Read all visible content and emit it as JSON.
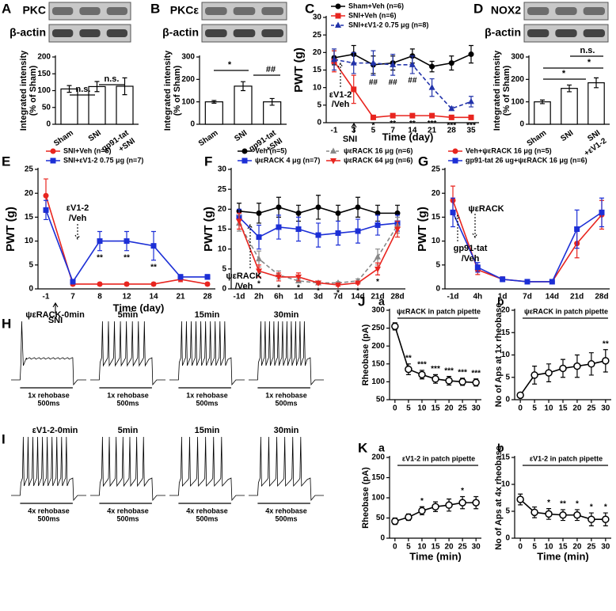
{
  "chart_data": [
    {
      "type": "bar",
      "panel": "A",
      "blot_labels": [
        "PKC",
        "β-actin"
      ],
      "ylabel": [
        "Integrated intensity",
        "(% of Sham)"
      ],
      "categories": [
        "Sham",
        "SNI",
        [
          "gp91-tat",
          "+SNI"
        ]
      ],
      "values": [
        105,
        112,
        113
      ],
      "errors": [
        10,
        15,
        25
      ],
      "color": "#ffffff",
      "ylim": [
        0,
        200
      ],
      "yticks": [
        0,
        50,
        100,
        150,
        200
      ],
      "annotations": [
        "n.s.",
        "n.s."
      ]
    },
    {
      "type": "bar",
      "panel": "B",
      "blot_labels": [
        "PKCε",
        "β-actin"
      ],
      "ylabel": [
        "Integrated intensity",
        "(% of Sham)"
      ],
      "categories": [
        "Sham",
        "SNI",
        [
          "gp91-tat",
          "+SNI"
        ]
      ],
      "values": [
        100,
        170,
        100
      ],
      "errors": [
        6,
        20,
        15
      ],
      "color": "#ffffff",
      "ylim": [
        0,
        300
      ],
      "yticks": [
        0,
        100,
        200,
        300
      ],
      "annotations": [
        "*",
        "##"
      ]
    },
    {
      "type": "line",
      "panel": "C",
      "ylabel": "PWT (g)",
      "xlabel": "Time (day)",
      "categories": [
        "-1",
        "3",
        "5",
        "7",
        "14",
        "21",
        "28",
        "35"
      ],
      "ylim": [
        0,
        30
      ],
      "yticks": [
        0,
        5,
        10,
        15,
        20,
        25,
        30
      ],
      "series": [
        {
          "name": "Sham+Veh (n=6)",
          "color": "#000000",
          "marker": "circle",
          "dash": false,
          "values": [
            18.5,
            19.5,
            16.5,
            17,
            19,
            16,
            17,
            19.5
          ],
          "errors": [
            2,
            2.5,
            2.5,
            2,
            2,
            1.5,
            2,
            2.5
          ]
        },
        {
          "name": "SNI+Veh (n=6)",
          "color": "#e8251f",
          "marker": "square",
          "dash": false,
          "values": [
            17.5,
            9.5,
            1.5,
            2,
            2,
            2,
            1.5,
            1.5
          ],
          "errors": [
            3,
            4,
            0.3,
            0.3,
            0.3,
            0.3,
            0.3,
            0.3
          ],
          "significance": [
            null,
            null,
            "*",
            "**",
            "**",
            "***",
            "***",
            "***"
          ]
        },
        {
          "name": "SNI+εV1-2 0.75 μg (n=8)",
          "color": "#2233aa",
          "marker": "triangle",
          "dash": true,
          "values": [
            18,
            17,
            17,
            16.5,
            16.5,
            10,
            4,
            6
          ],
          "errors": [
            3,
            3,
            3.5,
            3,
            2.5,
            2.5,
            0.5,
            1.5
          ],
          "significance": [
            null,
            null,
            "##",
            "##",
            "##",
            null,
            null,
            null
          ]
        }
      ],
      "annotations": [
        "εV1-2",
        "/Veh",
        "SNI"
      ]
    },
    {
      "type": "bar",
      "panel": "D",
      "blot_labels": [
        "NOX2",
        "β-actin"
      ],
      "ylabel": [
        "Integrated intensity",
        "(% of Sham)"
      ],
      "categories": [
        "Sham",
        "SNI",
        [
          "SNI",
          "+εV1-2"
        ]
      ],
      "values": [
        100,
        160,
        185
      ],
      "errors": [
        8,
        15,
        22
      ],
      "color": "#ffffff",
      "ylim": [
        0,
        300
      ],
      "yticks": [
        0,
        100,
        200,
        300
      ],
      "annotations": [
        "n.s.",
        "*",
        "*"
      ]
    },
    {
      "type": "line",
      "panel": "E",
      "ylabel": "PWT (g)",
      "xlabel": "Time (day)",
      "categories": [
        "-1",
        "7",
        "8",
        "12",
        "14",
        "21",
        "28"
      ],
      "ylim": [
        0,
        25
      ],
      "yticks": [
        0,
        5,
        10,
        15,
        20,
        25
      ],
      "series": [
        {
          "name": "SNI+Veh (n=5)",
          "color": "#e8251f",
          "marker": "circle",
          "dash": false,
          "values": [
            19.5,
            1,
            1,
            1,
            1,
            2,
            1
          ],
          "errors": [
            3.5,
            0.3,
            0.3,
            0.3,
            0.3,
            0.5,
            0.3
          ]
        },
        {
          "name": "SNI+εV1-2 0.75 μg (n=7)",
          "color": "#1c2fd6",
          "marker": "square",
          "dash": false,
          "values": [
            16.5,
            1.5,
            10,
            10,
            9,
            2.5,
            2.5
          ],
          "errors": [
            2,
            0.3,
            2,
            2,
            3,
            0.5,
            0.5
          ],
          "significance": [
            null,
            null,
            "**",
            "**",
            "**",
            null,
            null
          ]
        }
      ],
      "annotations": [
        "εV1-2",
        "/Veh",
        "SNI"
      ]
    },
    {
      "type": "line",
      "panel": "F",
      "ylabel": "PWT (g)",
      "categories": [
        "-1d",
        "2h",
        "6h",
        "1d",
        "3d",
        "7d",
        "14d",
        "21d",
        "28d"
      ],
      "ylim": [
        0,
        30
      ],
      "yticks": [
        0,
        5,
        10,
        15,
        20,
        25,
        30
      ],
      "series": [
        {
          "name": "Veh (n=5)",
          "color": "#000000",
          "marker": "circle",
          "dash": false,
          "values": [
            19.5,
            19,
            20.5,
            19,
            20.5,
            19,
            20.5,
            19,
            19
          ],
          "errors": [
            2,
            2.5,
            2.5,
            2,
            3,
            2,
            2.5,
            2,
            2
          ]
        },
        {
          "name": "ψεRACK 4 μg (n=7)",
          "color": "#1c2fd6",
          "marker": "square",
          "dash": false,
          "values": [
            18,
            13,
            15.5,
            15,
            13.5,
            14,
            14.5,
            16,
            16.5
          ],
          "errors": [
            2,
            3,
            3,
            3,
            3,
            3,
            3,
            2.5,
            2
          ]
        },
        {
          "name": "ψεRACK 16 μg (n=6)",
          "color": "#888888",
          "marker": "triangle",
          "dash": true,
          "values": [
            16.5,
            7.5,
            3.5,
            2,
            1.5,
            1.5,
            2,
            8,
            16
          ],
          "errors": [
            2,
            2,
            1,
            0.5,
            0.3,
            0.3,
            0.5,
            2,
            2
          ]
        },
        {
          "name": "ψεRACK 64 μg (n=6)",
          "color": "#e8251f",
          "marker": "triangle-down",
          "dash": false,
          "values": [
            17,
            4.5,
            3,
            3,
            1.5,
            1,
            1.5,
            5,
            15
          ],
          "errors": [
            2,
            1.5,
            1,
            1,
            0.3,
            0.3,
            0.3,
            1.5,
            2
          ],
          "significance": [
            null,
            "*",
            "*",
            "*",
            "*",
            "*",
            "*",
            "*",
            null
          ]
        }
      ],
      "annotations": [
        "ψεRACK",
        "/Veh"
      ]
    },
    {
      "type": "line",
      "panel": "G",
      "ylabel": "PWT (g)",
      "categories": [
        "-1d",
        "4h",
        "1d",
        "7d",
        "14d",
        "21d",
        "28d"
      ],
      "ylim": [
        0,
        25
      ],
      "yticks": [
        0,
        5,
        10,
        15,
        20,
        25
      ],
      "series": [
        {
          "name": "Veh+ψεRACK 16 μg (n=5)",
          "color": "#e8251f",
          "marker": "circle",
          "dash": false,
          "values": [
            18.5,
            4,
            2,
            1.5,
            1.5,
            9.5,
            15.5
          ],
          "errors": [
            3,
            1,
            0.5,
            0.3,
            0.3,
            3,
            3
          ]
        },
        {
          "name": "gp91-tat 26 ug+ψεRACK 16 μg (n=6)",
          "color": "#1c2fd6",
          "marker": "square",
          "dash": false,
          "values": [
            16,
            4.5,
            2,
            1.5,
            1.5,
            12.5,
            16
          ],
          "errors": [
            3,
            1,
            0.5,
            0.3,
            0.3,
            4,
            3
          ]
        }
      ],
      "annotations": [
        "ψεRACK",
        "gp91-tat",
        "/Veh"
      ]
    },
    {
      "type": "line",
      "panel": "J",
      "subpanel": "a",
      "title": "ψεRACK in patch pipette",
      "ylabel": "Rheobase (pA)",
      "x": [
        0,
        5,
        10,
        15,
        20,
        25,
        30
      ],
      "xlim": [
        -2,
        32
      ],
      "xticks": [
        0,
        5,
        10,
        15,
        20,
        25,
        30
      ],
      "ylim": [
        50,
        300
      ],
      "yticks": [
        50,
        100,
        150,
        200,
        250,
        300
      ],
      "series": [
        {
          "color": "#000000",
          "marker": "open-circle",
          "dash": false,
          "values": [
            255,
            135,
            120,
            108,
            103,
            100,
            98
          ],
          "errors": [
            10,
            15,
            12,
            12,
            12,
            10,
            10
          ],
          "significance": [
            null,
            "**",
            "***",
            "***",
            "***",
            "***",
            "***"
          ]
        }
      ]
    },
    {
      "type": "line",
      "subpanel": "b",
      "title": "ψεRACK in patch pipette",
      "ylabel": "No of Aps at 1x rheobase",
      "x": [
        0,
        5,
        10,
        15,
        20,
        25,
        30
      ],
      "xlim": [
        -2,
        32
      ],
      "xticks": [
        0,
        5,
        10,
        15,
        20,
        25,
        30
      ],
      "ylim": [
        0,
        20
      ],
      "yticks": [
        0,
        5,
        10,
        15,
        20
      ],
      "series": [
        {
          "color": "#000000",
          "marker": "open-circle",
          "dash": false,
          "values": [
            1,
            5.5,
            6,
            7,
            7.5,
            8,
            8.7
          ],
          "errors": [
            0.3,
            2,
            2,
            2,
            2.5,
            2.5,
            2.5
          ],
          "significance": [
            null,
            null,
            null,
            null,
            null,
            null,
            "**"
          ]
        }
      ]
    },
    {
      "type": "line",
      "panel": "K",
      "subpanel": "a",
      "title": "εV1-2 in patch pipette",
      "ylabel": "Rheobase (pA)",
      "xlabel": "Time (min)",
      "x": [
        0,
        5,
        10,
        15,
        20,
        25,
        30
      ],
      "xlim": [
        -2,
        32
      ],
      "xticks": [
        0,
        5,
        10,
        15,
        20,
        25,
        30
      ],
      "ylim": [
        0,
        200
      ],
      "yticks": [
        0,
        50,
        100,
        150,
        200
      ],
      "series": [
        {
          "color": "#000000",
          "marker": "open-circle",
          "dash": false,
          "values": [
            42,
            52,
            68,
            78,
            82,
            88,
            88
          ],
          "errors": [
            8,
            8,
            10,
            12,
            15,
            15,
            15
          ],
          "significance": [
            null,
            null,
            "*",
            null,
            null,
            "*",
            null
          ]
        }
      ]
    },
    {
      "type": "line",
      "subpanel": "b",
      "title": "εV1-2 in patch pipette",
      "ylabel": "No of Aps at 4x rheobase",
      "xlabel": "Time (min)",
      "x": [
        0,
        5,
        10,
        15,
        20,
        25,
        30
      ],
      "xlim": [
        -2,
        32
      ],
      "xticks": [
        0,
        5,
        10,
        15,
        20,
        25,
        30
      ],
      "ylim": [
        0,
        15
      ],
      "yticks": [
        0,
        5,
        10,
        15
      ],
      "series": [
        {
          "color": "#000000",
          "marker": "open-circle",
          "dash": false,
          "values": [
            7.2,
            4.8,
            4.5,
            4.3,
            4.3,
            3.5,
            3.5
          ],
          "errors": [
            1,
            1,
            1,
            1,
            1,
            1.2,
            1.2
          ],
          "significance": [
            null,
            null,
            "*",
            "**",
            "*",
            "*",
            "*"
          ]
        }
      ]
    }
  ],
  "traces": [
    {
      "panel": "H",
      "titles": [
        "ψεRACK-0min",
        "5min",
        "15min",
        "30min"
      ],
      "stimulus": "1x rehobase",
      "scale": "500ms"
    },
    {
      "panel": "I",
      "titles": [
        "εV1-2-0min",
        "5min",
        "15min",
        "30min"
      ],
      "stimulus": "4x rehobase",
      "scale": "500ms"
    }
  ]
}
